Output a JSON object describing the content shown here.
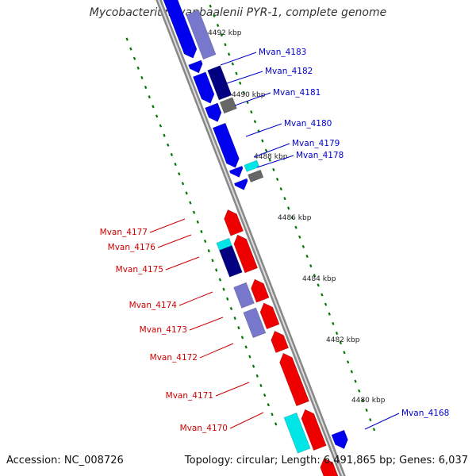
{
  "title": "Mycobacterium vanbaalenii PYR-1, complete genome",
  "footer": {
    "accession": "Accession: NC_008726",
    "summary": "Topology: circular; Length: 6,491,865 bp; Genes: 6,037"
  },
  "colors": {
    "forward_strand": "#0000ee",
    "reverse_strand": "#ee0000",
    "dark_blue": "#000080",
    "slate_blue": "#7777cc",
    "cyan": "#00e5e5",
    "gray": "#666666",
    "backbone": "#888888",
    "scale_dots": "#007700",
    "label_blue": "#0000cc",
    "label_red": "#cc0000"
  },
  "scale_ticks": [
    {
      "label": "4492 kbp"
    },
    {
      "label": "4490 kbp"
    },
    {
      "label": "4488 kbp"
    },
    {
      "label": "4486 kbp"
    },
    {
      "label": "4484 kbp"
    },
    {
      "label": "4482 kbp"
    },
    {
      "label": "4480 kbp"
    }
  ],
  "gene_labels": [
    {
      "name": "Mvan_4183",
      "strand": "forward"
    },
    {
      "name": "Mvan_4182",
      "strand": "forward"
    },
    {
      "name": "Mvan_4181",
      "strand": "forward"
    },
    {
      "name": "Mvan_4180",
      "strand": "forward"
    },
    {
      "name": "Mvan_4179",
      "strand": "forward"
    },
    {
      "name": "Mvan_4178",
      "strand": "forward"
    },
    {
      "name": "Mvan_4177",
      "strand": "reverse"
    },
    {
      "name": "Mvan_4176",
      "strand": "reverse"
    },
    {
      "name": "Mvan_4175",
      "strand": "reverse"
    },
    {
      "name": "Mvan_4174",
      "strand": "reverse"
    },
    {
      "name": "Mvan_4173",
      "strand": "reverse"
    },
    {
      "name": "Mvan_4172",
      "strand": "reverse"
    },
    {
      "name": "Mvan_4171",
      "strand": "reverse"
    },
    {
      "name": "Mvan_4170",
      "strand": "reverse"
    },
    {
      "name": "Mvan_4168",
      "strand": "forward"
    }
  ]
}
